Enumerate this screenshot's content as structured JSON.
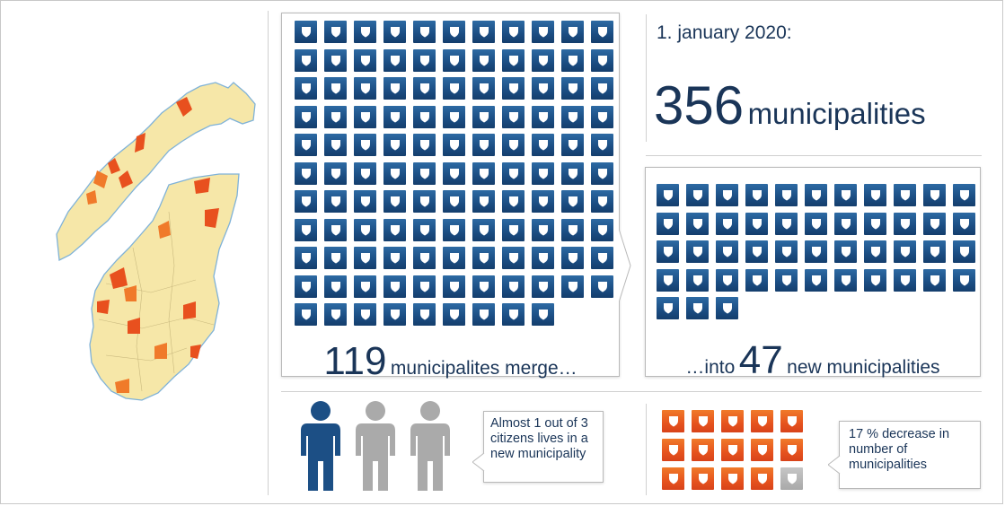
{
  "date_label": "1. january 2020:",
  "total": {
    "number": "356",
    "label": "municipalities"
  },
  "merge": {
    "number": "119",
    "label": "municipalites merge…",
    "count": 119
  },
  "result": {
    "prefix": "…into",
    "number": "47",
    "label": "new municipalities",
    "count": 47
  },
  "citizens": {
    "callout": "Almost 1 out of 3 citizens lives in a new municipality",
    "ratio_highlighted": 1,
    "ratio_total": 3
  },
  "decrease": {
    "callout": "17 % decrease in number of municipalities",
    "highlighted": 14,
    "total": 17
  },
  "colors": {
    "navy": "#1c4f85",
    "orange": "#e6531e",
    "grey": "#aaaaaa",
    "map_land": "#f6e7a8",
    "map_changed": "#e8501e"
  },
  "icons": {
    "tile": "shield-icon",
    "person": "person-icon",
    "map": "norway-map"
  }
}
